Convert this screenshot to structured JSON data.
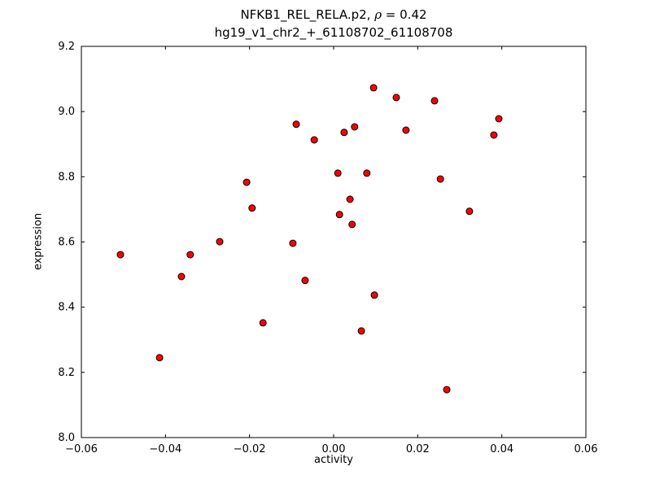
{
  "figure": {
    "title_prefix": "NFKB1_REL_RELA.p2, ",
    "title_rho": "ρ",
    "title_suffix": " = 0.42"
  },
  "chart_data": {
    "type": "scatter",
    "title": "NFKB1_REL_RELA.p2, ρ = 0.42",
    "subtitle": "hg19_v1_chr2_+_61108702_61108708",
    "xlabel": "activity",
    "ylabel": "expression",
    "xlim": [
      -0.06,
      0.06
    ],
    "ylim": [
      8.0,
      9.2
    ],
    "xticks": [
      -0.06,
      -0.04,
      -0.02,
      0.0,
      0.02,
      0.04,
      0.06
    ],
    "xtick_labels": [
      "−0.06",
      "−0.04",
      "−0.02",
      "0.00",
      "0.02",
      "0.04",
      "0.06"
    ],
    "yticks": [
      8.0,
      8.2,
      8.4,
      8.6,
      8.8,
      9.0,
      9.2
    ],
    "ytick_labels": [
      "8.0",
      "8.2",
      "8.4",
      "8.6",
      "8.8",
      "9.0",
      "9.2"
    ],
    "grid": false,
    "legend": "none",
    "marker": {
      "fill": "#ff0000",
      "edge": "#000000",
      "radius": 4
    },
    "points": [
      [
        -0.0507,
        8.561
      ],
      [
        -0.0414,
        8.245
      ],
      [
        -0.0362,
        8.494
      ],
      [
        -0.0341,
        8.561
      ],
      [
        -0.0271,
        8.601
      ],
      [
        -0.0207,
        8.783
      ],
      [
        -0.0194,
        8.704
      ],
      [
        -0.0168,
        8.352
      ],
      [
        -0.0097,
        8.596
      ],
      [
        -0.0089,
        8.961
      ],
      [
        -0.0068,
        8.482
      ],
      [
        -0.0046,
        8.913
      ],
      [
        0.001,
        8.811
      ],
      [
        0.0014,
        8.684
      ],
      [
        0.0025,
        8.936
      ],
      [
        0.0039,
        8.731
      ],
      [
        0.0044,
        8.654
      ],
      [
        0.005,
        8.953
      ],
      [
        0.0066,
        8.327
      ],
      [
        0.0079,
        8.811
      ],
      [
        0.0095,
        9.073
      ],
      [
        0.0097,
        8.437
      ],
      [
        0.0149,
        9.043
      ],
      [
        0.0172,
        8.943
      ],
      [
        0.024,
        9.033
      ],
      [
        0.0254,
        8.793
      ],
      [
        0.0269,
        8.147
      ],
      [
        0.0323,
        8.694
      ],
      [
        0.0381,
        8.928
      ],
      [
        0.0393,
        8.978
      ]
    ]
  }
}
